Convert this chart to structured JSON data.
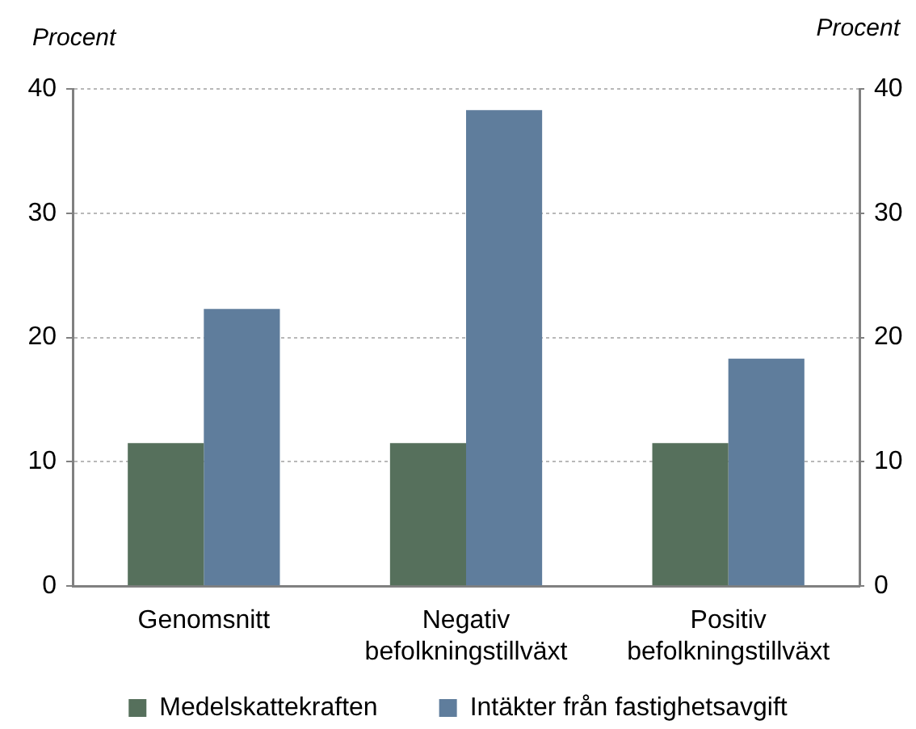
{
  "chart_data": {
    "type": "bar",
    "ylabel": "Procent",
    "y2label": "Procent",
    "categories": [
      "Genomsnitt",
      "Negativ befolkningstillväxt",
      "Positiv befolkningstillväxt"
    ],
    "series": [
      {
        "name": "Medelskattekraften",
        "color": "#56705c",
        "values": [
          11.5,
          11.5,
          11.5
        ]
      },
      {
        "name": "Intäkter från fastighetsavgift",
        "color": "#5f7d9c",
        "values": [
          22.3,
          38.3,
          18.3
        ]
      }
    ],
    "ylim": [
      0,
      40
    ],
    "yticks": [
      0,
      10,
      20,
      30,
      40
    ],
    "y2lim": [
      0,
      40
    ],
    "y2ticks": [
      0,
      10,
      20,
      30,
      40
    ],
    "grid": "y",
    "legend": "bottom"
  }
}
